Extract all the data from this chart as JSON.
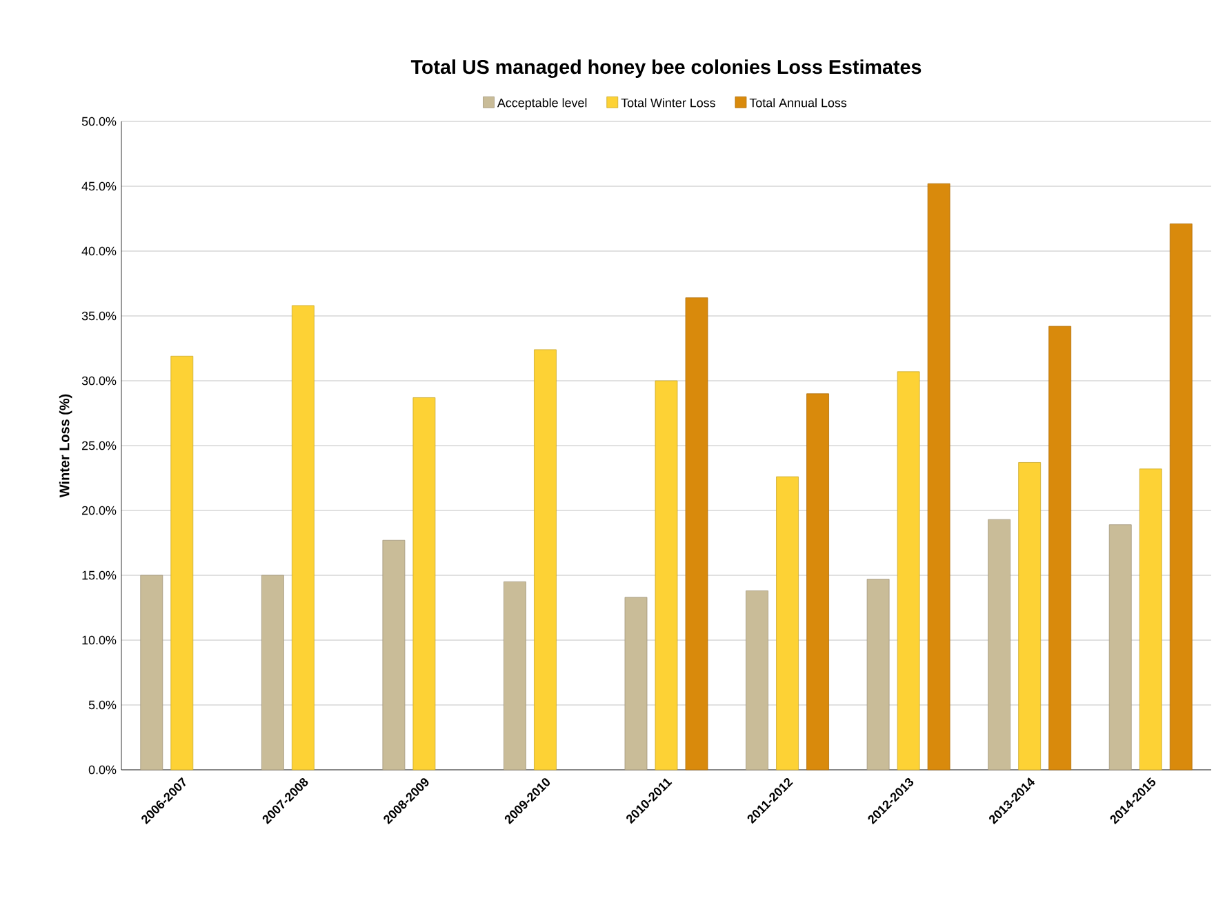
{
  "chart_data": {
    "type": "bar",
    "title": "Total US managed honey bee colonies Loss Estimates",
    "ylabel": "Winter Loss (%)",
    "categories": [
      "2006-2007",
      "2007-2008",
      "2008-2009",
      "2009-2010",
      "2010-2011",
      "2011-2012",
      "2012-2013",
      "2013-2014",
      "2014-2015"
    ],
    "series": [
      {
        "name": "Acceptable level",
        "color": "#c9bc98",
        "values": [
          15.0,
          15.0,
          17.7,
          14.5,
          13.3,
          13.8,
          14.7,
          19.3,
          18.9
        ]
      },
      {
        "name": "Total Winter Loss",
        "color": "#fdd235",
        "values": [
          31.9,
          35.8,
          28.7,
          32.4,
          30.0,
          22.6,
          30.7,
          23.7,
          23.2
        ]
      },
      {
        "name": "Total Annual Loss",
        "color": "#d98a0c",
        "values": [
          null,
          null,
          null,
          null,
          36.4,
          29.0,
          45.2,
          34.2,
          42.1
        ]
      }
    ],
    "ylim": [
      0,
      50
    ],
    "yticks": [
      {
        "value": 0,
        "label": "0.0%"
      },
      {
        "value": 5,
        "label": "5.0%"
      },
      {
        "value": 10,
        "label": "10.0%"
      },
      {
        "value": 15,
        "label": "15.0%"
      },
      {
        "value": 20,
        "label": "20.0%"
      },
      {
        "value": 25,
        "label": "25.0%"
      },
      {
        "value": 30,
        "label": "30.0%"
      },
      {
        "value": 35,
        "label": "35.0%"
      },
      {
        "value": 40,
        "label": "40.0%"
      },
      {
        "value": 45,
        "label": "45.0%"
      },
      {
        "value": 50,
        "label": "50.0%"
      }
    ],
    "grid": "y",
    "legend": "top"
  }
}
